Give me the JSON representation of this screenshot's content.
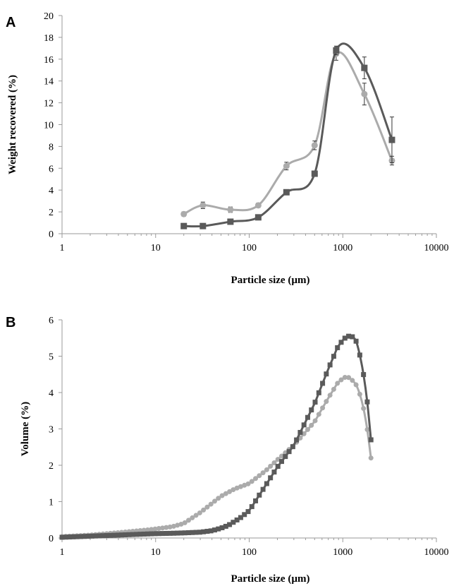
{
  "chart_data": [
    {
      "panel": "A",
      "type": "line",
      "xscale": "log",
      "xlim": [
        1,
        10000
      ],
      "ylim": [
        0,
        20
      ],
      "xticks": [
        1,
        10,
        100,
        1000,
        10000
      ],
      "xtick_labels": [
        "1",
        "10",
        "100",
        "1000",
        "10000"
      ],
      "yticks": [
        0,
        2,
        4,
        6,
        8,
        10,
        12,
        14,
        16,
        18,
        20
      ],
      "ytick_labels": [
        "0",
        "2",
        "4",
        "6",
        "8",
        "10",
        "12",
        "14",
        "16",
        "18",
        "20"
      ],
      "xlabel": "Particle size (µm)",
      "ylabel": "Weight recovered (%)",
      "grid": false,
      "series": [
        {
          "marker": "square",
          "color": "#5a5a5a",
          "points": [
            {
              "x": 20,
              "y": 0.7,
              "err": 0.15
            },
            {
              "x": 32,
              "y": 0.7,
              "err": 0.15
            },
            {
              "x": 63,
              "y": 1.1,
              "err": 0.15
            },
            {
              "x": 125,
              "y": 1.5,
              "err": 0.15
            },
            {
              "x": 250,
              "y": 3.8,
              "err": 0.2
            },
            {
              "x": 500,
              "y": 5.5,
              "err": 0.25
            },
            {
              "x": 850,
              "y": 16.8,
              "err": 0.4
            },
            {
              "x": 1700,
              "y": 15.2,
              "err": 1.0
            },
            {
              "x": 3350,
              "y": 8.6,
              "err": 2.1
            }
          ]
        },
        {
          "marker": "circle",
          "color": "#ababab",
          "points": [
            {
              "x": 20,
              "y": 1.8,
              "err": 0.2
            },
            {
              "x": 32,
              "y": 2.6,
              "err": 0.3
            },
            {
              "x": 63,
              "y": 2.2,
              "err": 0.25
            },
            {
              "x": 125,
              "y": 2.6,
              "err": 0.2
            },
            {
              "x": 250,
              "y": 6.2,
              "err": 0.35
            },
            {
              "x": 500,
              "y": 8.1,
              "err": 0.4
            },
            {
              "x": 850,
              "y": 16.5,
              "err": 0.6
            },
            {
              "x": 1700,
              "y": 12.8,
              "err": 1.0
            },
            {
              "x": 3350,
              "y": 6.7,
              "err": 0.4
            }
          ]
        }
      ]
    },
    {
      "panel": "B",
      "type": "line",
      "xscale": "log",
      "xlim": [
        1,
        10000
      ],
      "ylim": [
        0,
        6
      ],
      "xticks": [
        1,
        10,
        100,
        1000,
        10000
      ],
      "xtick_labels": [
        "1",
        "10",
        "100",
        "1000",
        "10000"
      ],
      "yticks": [
        0,
        1,
        2,
        3,
        4,
        5,
        6
      ],
      "ytick_labels": [
        "0",
        "1",
        "2",
        "3",
        "4",
        "5",
        "6"
      ],
      "xlabel": "Particle size (µm)",
      "ylabel": "Volume (%)",
      "grid": false,
      "series": [
        {
          "marker": "square",
          "color": "#5a5a5a",
          "x_range": [
            1,
            2000
          ],
          "n_points": 84,
          "anchors": [
            [
              1,
              0.02
            ],
            [
              2,
              0.05
            ],
            [
              5,
              0.09
            ],
            [
              10,
              0.12
            ],
            [
              15,
              0.13
            ],
            [
              20,
              0.14
            ],
            [
              30,
              0.16
            ],
            [
              40,
              0.2
            ],
            [
              50,
              0.27
            ],
            [
              60,
              0.35
            ],
            [
              80,
              0.55
            ],
            [
              100,
              0.75
            ],
            [
              150,
              1.45
            ],
            [
              200,
              1.95
            ],
            [
              300,
              2.55
            ],
            [
              500,
              3.7
            ],
            [
              700,
              4.65
            ],
            [
              900,
              5.3
            ],
            [
              1100,
              5.55
            ],
            [
              1250,
              5.55
            ],
            [
              1400,
              5.4
            ],
            [
              1600,
              4.8
            ],
            [
              1800,
              3.9
            ],
            [
              2000,
              2.7
            ]
          ]
        },
        {
          "marker": "circle",
          "color": "#ababab",
          "x_range": [
            1,
            2000
          ],
          "n_points": 84,
          "anchors": [
            [
              1,
              0.04
            ],
            [
              2,
              0.08
            ],
            [
              5,
              0.17
            ],
            [
              8,
              0.22
            ],
            [
              10,
              0.25
            ],
            [
              15,
              0.31
            ],
            [
              20,
              0.4
            ],
            [
              30,
              0.7
            ],
            [
              50,
              1.15
            ],
            [
              70,
              1.35
            ],
            [
              100,
              1.5
            ],
            [
              150,
              1.85
            ],
            [
              200,
              2.15
            ],
            [
              300,
              2.55
            ],
            [
              500,
              3.2
            ],
            [
              700,
              3.85
            ],
            [
              900,
              4.3
            ],
            [
              1100,
              4.45
            ],
            [
              1250,
              4.35
            ],
            [
              1400,
              4.2
            ],
            [
              1600,
              3.8
            ],
            [
              1800,
              3.1
            ],
            [
              2000,
              2.2
            ]
          ]
        }
      ]
    }
  ]
}
